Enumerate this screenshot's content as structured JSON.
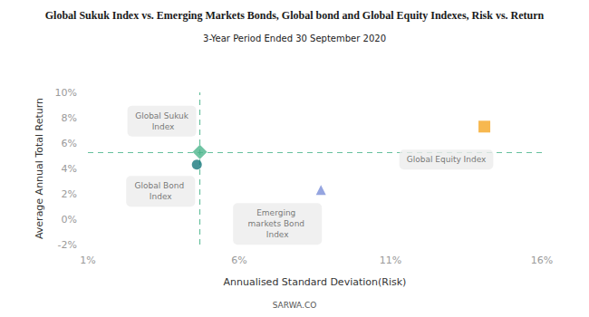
{
  "chart_data": {
    "type": "scatter",
    "title": "Global Sukuk Index vs. Emerging Markets Bonds, Global bond and Global Equity Indexes, Risk vs. Return",
    "subtitle": "3-Year Period Ended 30 September 2020",
    "x_label": "Annualised Standard Deviation(Risk)",
    "y_label": "Average Annual Total Return",
    "footer": "SARWA.CO",
    "xlim": [
      1,
      16
    ],
    "xticks": [
      {
        "value": 1,
        "label": "1%"
      },
      {
        "value": 6,
        "label": "6%"
      },
      {
        "value": 11,
        "label": "11%"
      },
      {
        "value": 16,
        "label": "16%"
      }
    ],
    "ylim": [
      -2,
      10
    ],
    "yticks": [
      {
        "value": -2,
        "label": "-2%"
      },
      {
        "value": 0,
        "label": "0%"
      },
      {
        "value": 2,
        "label": "2%"
      },
      {
        "value": 4,
        "label": "4%"
      },
      {
        "value": 6,
        "label": "6%"
      },
      {
        "value": 8,
        "label": "8%"
      },
      {
        "value": 10,
        "label": "10%"
      }
    ],
    "grid": false,
    "series": [
      {
        "name": "Global Sukuk Index",
        "color": "#4cb58c",
        "marker": "diamond",
        "x": [
          4.7
        ],
        "y": [
          5.3
        ]
      },
      {
        "name": "Global Bond Index",
        "color": "#17787c",
        "marker": "circle",
        "x": [
          4.6
        ],
        "y": [
          4.3
        ]
      },
      {
        "name": "Emerging markets Bond Index",
        "color": "#7b8ed8",
        "marker": "triangle",
        "x": [
          8.7
        ],
        "y": [
          2.3
        ]
      },
      {
        "name": "Global Equity Index",
        "color": "#f5a623",
        "marker": "square",
        "x": [
          14.1
        ],
        "y": [
          7.3
        ]
      }
    ]
  }
}
